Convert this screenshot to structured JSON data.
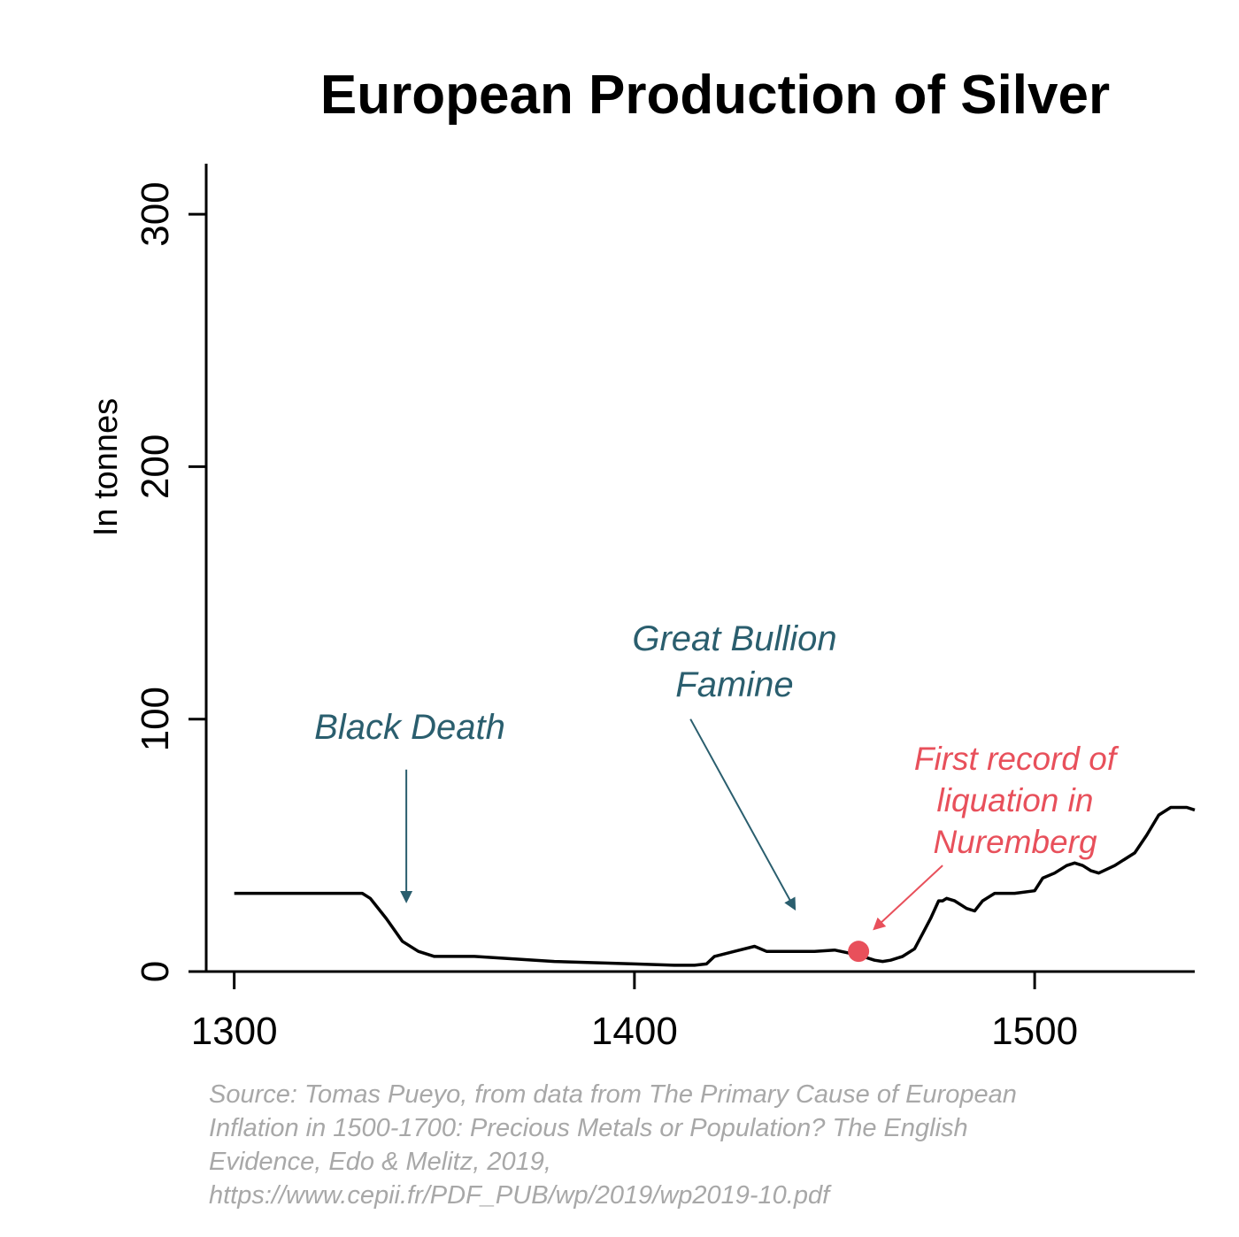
{
  "chart_data": {
    "type": "line",
    "title": "European Production of Silver",
    "ylabel": "In tonnes",
    "xlabel": "",
    "xlim": [
      1293,
      1540
    ],
    "ylim": [
      0,
      320
    ],
    "x_ticks": [
      1300,
      1400,
      1500
    ],
    "y_ticks": [
      0,
      100,
      200,
      300
    ],
    "x_tick_labels": [
      "1300",
      "1400",
      "1500"
    ],
    "y_tick_labels": [
      "0",
      "100",
      "200",
      "300"
    ],
    "grid": false,
    "legend": "none",
    "series": [
      {
        "x": [
          1300,
          1310,
          1320,
          1330,
          1332,
          1334,
          1338,
          1342,
          1346,
          1350,
          1360,
          1370,
          1380,
          1390,
          1400,
          1410,
          1415,
          1418,
          1420,
          1425,
          1430,
          1433,
          1436,
          1440,
          1445,
          1450,
          1453,
          1456,
          1458,
          1460,
          1462,
          1464,
          1467,
          1470,
          1472,
          1474,
          1476,
          1477,
          1478,
          1480,
          1482,
          1483,
          1485,
          1487,
          1490,
          1493,
          1495,
          1500,
          1502,
          1505,
          1508,
          1510,
          1512,
          1514,
          1516,
          1520,
          1525,
          1528,
          1531,
          1534,
          1538,
          1540
        ],
        "y": [
          31,
          31,
          31,
          31,
          31,
          29,
          21,
          12,
          8,
          6,
          6,
          5,
          4,
          3.5,
          3,
          2.5,
          2.5,
          3,
          6,
          8,
          10,
          8,
          8,
          8,
          8,
          8.5,
          7.5,
          6.5,
          5.5,
          4.5,
          4,
          4.5,
          6,
          9,
          15,
          21,
          28,
          28,
          29,
          28,
          26,
          25,
          24,
          28,
          31,
          31,
          31,
          32,
          37,
          39,
          42,
          43,
          42,
          40,
          39,
          42,
          47,
          54,
          62,
          65,
          65,
          64
        ]
      }
    ],
    "marker": {
      "x": 1456,
      "y": 8,
      "color": "#e8505b"
    },
    "annotations": [
      {
        "lines": [
          "Black Death"
        ],
        "color": "#2a5e6e",
        "arrow_from": [
          1343,
          80
        ],
        "arrow_to": [
          1343,
          28
        ]
      },
      {
        "lines": [
          "Great Bullion",
          "Famine"
        ],
        "color": "#2a5e6e",
        "arrow_from": [
          1414,
          100
        ],
        "arrow_to": [
          1440,
          25
        ]
      },
      {
        "lines": [
          "First record of",
          "liquation in",
          "Nuremberg"
        ],
        "color": "#e8505b",
        "arrow_from": [
          1477,
          42
        ],
        "arrow_to": [
          1460,
          17
        ]
      }
    ],
    "line_color": "#000000",
    "annotation_teal": "#2a5e6e",
    "annotation_red": "#e8505b"
  },
  "source": {
    "lines": [
      "Source: Tomas Pueyo, from data from The Primary Cause of European",
      "Inflation in 1500-1700: Precious Metals or Population? The English",
      "Evidence, Edo & Melitz, 2019,",
      "https://www.cepii.fr/PDF_PUB/wp/2019/wp2019-10.pdf"
    ]
  }
}
